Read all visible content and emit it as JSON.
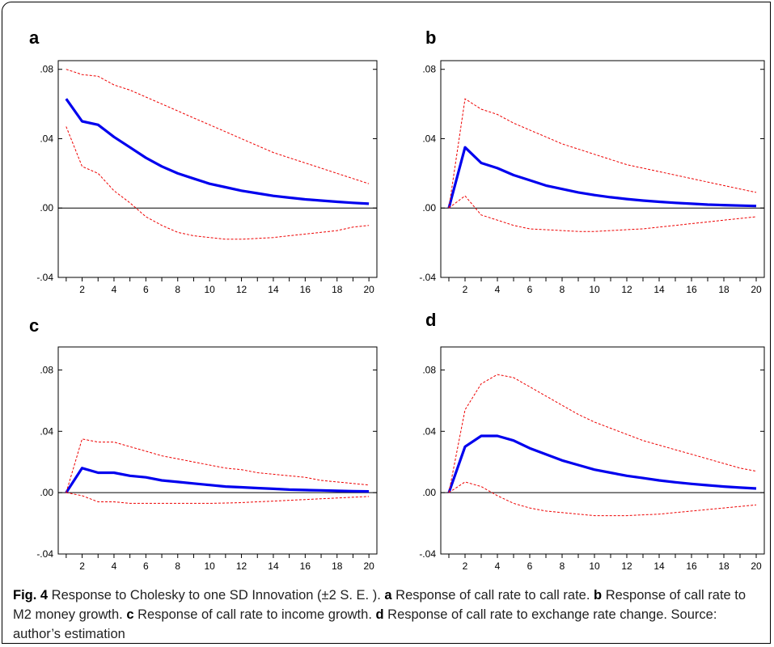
{
  "chart_data": [
    {
      "panel": "a",
      "type": "line",
      "x": [
        1,
        2,
        3,
        4,
        5,
        6,
        7,
        8,
        9,
        10,
        11,
        12,
        13,
        14,
        15,
        16,
        17,
        18,
        19,
        20
      ],
      "xticks": [
        2,
        4,
        6,
        8,
        10,
        12,
        14,
        16,
        18,
        20
      ],
      "yticks": [
        -0.04,
        0.0,
        0.04,
        0.08
      ],
      "ytick_labels": [
        "-.04",
        ".00",
        ".04",
        ".08"
      ],
      "ylim": [
        -0.04,
        0.085
      ],
      "series": [
        {
          "role": "response",
          "color": "#0000ee",
          "values": [
            0.063,
            0.05,
            0.048,
            0.041,
            0.035,
            0.029,
            0.024,
            0.02,
            0.017,
            0.014,
            0.012,
            0.01,
            0.0085,
            0.007,
            0.006,
            0.005,
            0.0043,
            0.0036,
            0.003,
            0.0025
          ]
        },
        {
          "role": "upper",
          "color": "#ee0000",
          "values": [
            0.08,
            0.077,
            0.076,
            0.071,
            0.068,
            0.064,
            0.06,
            0.056,
            0.052,
            0.048,
            0.044,
            0.04,
            0.036,
            0.032,
            0.029,
            0.026,
            0.023,
            0.02,
            0.017,
            0.014
          ]
        },
        {
          "role": "lower",
          "color": "#ee0000",
          "values": [
            0.047,
            0.024,
            0.02,
            0.01,
            0.003,
            -0.005,
            -0.01,
            -0.014,
            -0.016,
            -0.017,
            -0.018,
            -0.018,
            -0.0175,
            -0.017,
            -0.016,
            -0.015,
            -0.014,
            -0.013,
            -0.011,
            -0.01
          ]
        }
      ]
    },
    {
      "panel": "b",
      "type": "line",
      "x": [
        1,
        2,
        3,
        4,
        5,
        6,
        7,
        8,
        9,
        10,
        11,
        12,
        13,
        14,
        15,
        16,
        17,
        18,
        19,
        20
      ],
      "xticks": [
        2,
        4,
        6,
        8,
        10,
        12,
        14,
        16,
        18,
        20
      ],
      "yticks": [
        -0.04,
        0.0,
        0.04,
        0.08
      ],
      "ytick_labels": [
        "-.04",
        ".00",
        ".04",
        ".08"
      ],
      "ylim": [
        -0.04,
        0.085
      ],
      "series": [
        {
          "role": "response",
          "color": "#0000ee",
          "values": [
            0.0,
            0.035,
            0.026,
            0.023,
            0.019,
            0.016,
            0.013,
            0.011,
            0.009,
            0.0075,
            0.0062,
            0.0052,
            0.0043,
            0.0036,
            0.003,
            0.0025,
            0.002,
            0.0017,
            0.0014,
            0.0012
          ]
        },
        {
          "role": "upper",
          "color": "#ee0000",
          "values": [
            0.0,
            0.063,
            0.057,
            0.054,
            0.049,
            0.045,
            0.041,
            0.037,
            0.034,
            0.031,
            0.028,
            0.025,
            0.023,
            0.021,
            0.019,
            0.017,
            0.015,
            0.013,
            0.011,
            0.009
          ]
        },
        {
          "role": "lower",
          "color": "#ee0000",
          "values": [
            0.0,
            0.007,
            -0.004,
            -0.007,
            -0.01,
            -0.012,
            -0.0125,
            -0.013,
            -0.0135,
            -0.0135,
            -0.013,
            -0.0125,
            -0.012,
            -0.011,
            -0.01,
            -0.009,
            -0.008,
            -0.007,
            -0.006,
            -0.005
          ]
        }
      ]
    },
    {
      "panel": "c",
      "type": "line",
      "x": [
        1,
        2,
        3,
        4,
        5,
        6,
        7,
        8,
        9,
        10,
        11,
        12,
        13,
        14,
        15,
        16,
        17,
        18,
        19,
        20
      ],
      "xticks": [
        2,
        4,
        6,
        8,
        10,
        12,
        14,
        16,
        18,
        20
      ],
      "yticks": [
        -0.04,
        0.0,
        0.04,
        0.08
      ],
      "ytick_labels": [
        "-.04",
        ".00",
        ".04",
        ".08"
      ],
      "ylim": [
        -0.04,
        0.095
      ],
      "series": [
        {
          "role": "response",
          "color": "#0000ee",
          "values": [
            0.0,
            0.016,
            0.013,
            0.013,
            0.011,
            0.01,
            0.008,
            0.007,
            0.006,
            0.005,
            0.004,
            0.0035,
            0.003,
            0.0025,
            0.002,
            0.0017,
            0.0015,
            0.0012,
            0.001,
            0.0008
          ]
        },
        {
          "role": "upper",
          "color": "#ee0000",
          "values": [
            0.0,
            0.035,
            0.033,
            0.033,
            0.03,
            0.027,
            0.024,
            0.022,
            0.02,
            0.018,
            0.016,
            0.015,
            0.013,
            0.012,
            0.011,
            0.01,
            0.008,
            0.007,
            0.006,
            0.005
          ]
        },
        {
          "role": "lower",
          "color": "#ee0000",
          "values": [
            0.0,
            -0.002,
            -0.006,
            -0.006,
            -0.007,
            -0.007,
            -0.007,
            -0.007,
            -0.007,
            -0.007,
            -0.0068,
            -0.0065,
            -0.006,
            -0.0055,
            -0.005,
            -0.0045,
            -0.004,
            -0.0035,
            -0.003,
            -0.0025
          ]
        }
      ]
    },
    {
      "panel": "d",
      "type": "line",
      "x": [
        1,
        2,
        3,
        4,
        5,
        6,
        7,
        8,
        9,
        10,
        11,
        12,
        13,
        14,
        15,
        16,
        17,
        18,
        19,
        20
      ],
      "xticks": [
        2,
        4,
        6,
        8,
        10,
        12,
        14,
        16,
        18,
        20
      ],
      "yticks": [
        -0.04,
        0.0,
        0.04,
        0.08
      ],
      "ytick_labels": [
        "-.04",
        ".00",
        ".04",
        ".08"
      ],
      "ylim": [
        -0.04,
        0.095
      ],
      "series": [
        {
          "role": "response",
          "color": "#0000ee",
          "values": [
            0.0,
            0.03,
            0.037,
            0.037,
            0.034,
            0.029,
            0.025,
            0.021,
            0.018,
            0.015,
            0.013,
            0.011,
            0.0095,
            0.008,
            0.0068,
            0.0057,
            0.0048,
            0.004,
            0.0033,
            0.0027
          ]
        },
        {
          "role": "upper",
          "color": "#ee0000",
          "values": [
            0.0,
            0.054,
            0.071,
            0.077,
            0.075,
            0.069,
            0.063,
            0.057,
            0.051,
            0.046,
            0.042,
            0.038,
            0.034,
            0.031,
            0.028,
            0.025,
            0.022,
            0.019,
            0.016,
            0.014
          ]
        },
        {
          "role": "lower",
          "color": "#ee0000",
          "values": [
            0.0,
            0.007,
            0.004,
            -0.002,
            -0.007,
            -0.01,
            -0.012,
            -0.013,
            -0.014,
            -0.015,
            -0.015,
            -0.015,
            -0.0145,
            -0.014,
            -0.013,
            -0.012,
            -0.011,
            -0.01,
            -0.009,
            -0.008
          ]
        }
      ]
    }
  ],
  "caption": {
    "fig_label": "Fig. 4",
    "intro": " Response to Cholesky to one SD Innovation (±2 S. E. ). ",
    "parts": [
      {
        "letter": "a",
        "text": " Response of call rate to call rate. "
      },
      {
        "letter": "b",
        "text": " Response of call rate to M2 money growth. "
      },
      {
        "letter": "c",
        "text": " Response of call rate to income growth. "
      },
      {
        "letter": "d",
        "text": " Response of call rate to exchange rate change. Source: author’s estimation"
      }
    ]
  }
}
